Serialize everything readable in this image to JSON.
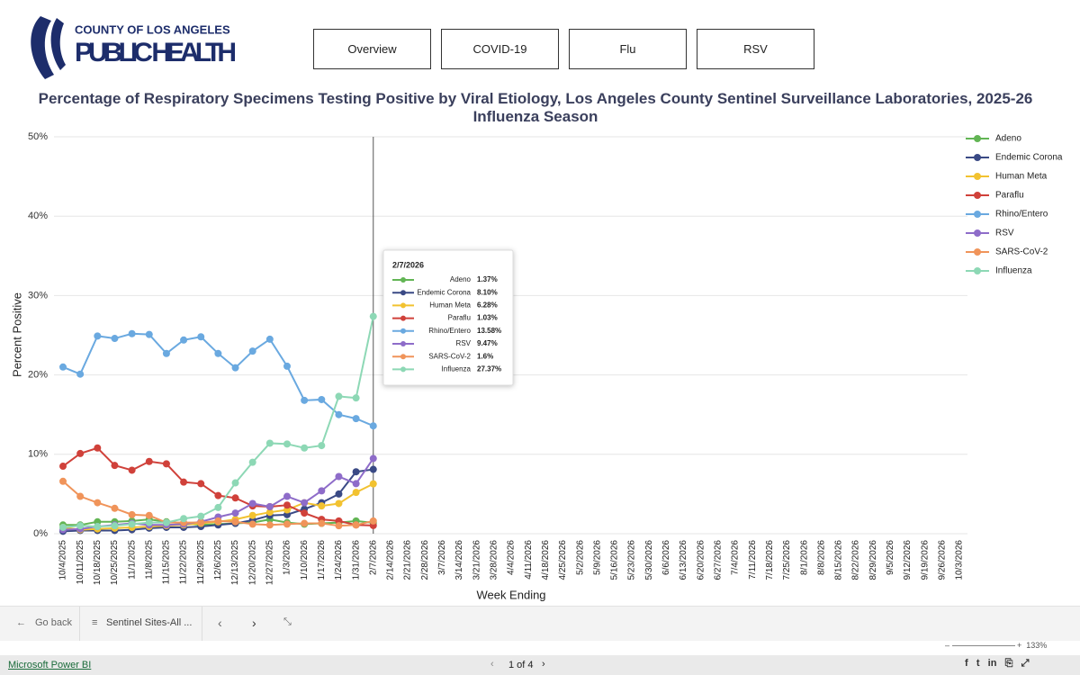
{
  "header": {
    "org": "COUNTY OF LOS ANGELES",
    "dept": "Public Health"
  },
  "nav": [
    "Overview",
    "COVID-19",
    "Flu",
    "RSV"
  ],
  "chart_data": {
    "type": "line",
    "title": "Percentage of Respiratory Specimens Testing Positive by Viral Etiology, Los Angeles County Sentinel Surveillance Laboratories, 2025-26 Influenza Season",
    "x_label": "Week Ending",
    "y_label": "Percent Positive",
    "categories": [
      "10/4/2025",
      "10/11/2025",
      "10/18/2025",
      "10/25/2025",
      "11/1/2025",
      "11/8/2025",
      "11/15/2025",
      "11/22/2025",
      "11/29/2025",
      "12/6/2025",
      "12/13/2025",
      "12/20/2025",
      "12/27/2025",
      "1/3/2026",
      "1/10/2026",
      "1/17/2026",
      "1/24/2026",
      "1/31/2026",
      "2/7/2026",
      "2/14/2026",
      "2/21/2026",
      "2/28/2026",
      "3/7/2026",
      "3/14/2026",
      "3/21/2026",
      "3/28/2026",
      "4/4/2026",
      "4/11/2026",
      "4/18/2026",
      "4/25/2026",
      "5/2/2026",
      "5/9/2026",
      "5/16/2026",
      "5/23/2026",
      "5/30/2026",
      "6/6/2026",
      "6/13/2026",
      "6/20/2026",
      "6/27/2026",
      "7/4/2026",
      "7/11/2026",
      "7/18/2026",
      "7/25/2026",
      "8/1/2026",
      "8/8/2026",
      "8/15/2026",
      "8/22/2026",
      "8/29/2026",
      "9/5/2026",
      "9/12/2026",
      "9/19/2026",
      "9/26/2026",
      "10/3/2026"
    ],
    "ylim": [
      0,
      50
    ],
    "yticks": [
      {
        "value": 0,
        "label": "0%"
      },
      {
        "value": 10,
        "label": "10%"
      },
      {
        "value": 20,
        "label": "20%"
      },
      {
        "value": 30,
        "label": "30%"
      },
      {
        "value": 40,
        "label": "40%"
      },
      {
        "value": 50,
        "label": "50%"
      }
    ],
    "grid": true,
    "legend": "right",
    "series": [
      {
        "name": "Adeno",
        "color": "#62b554",
        "values": [
          1.1,
          1.1,
          1.5,
          1.5,
          1.6,
          1.8,
          1.5,
          1.3,
          1.1,
          1.2,
          1.3,
          1.4,
          1.8,
          1.4,
          1.2,
          1.3,
          1.4,
          1.6,
          1.37,
          null,
          null,
          null,
          null,
          null,
          null,
          null,
          null,
          null,
          null,
          null,
          null,
          null,
          null,
          null,
          null,
          null,
          null,
          null,
          null,
          null,
          null,
          null,
          null,
          null,
          null,
          null,
          null,
          null,
          null,
          null,
          null,
          null,
          null
        ],
        "tooltip_label": "1.37%"
      },
      {
        "name": "Endemic Corona",
        "color": "#3a4a85",
        "values": [
          0.3,
          0.4,
          0.4,
          0.4,
          0.5,
          0.7,
          0.8,
          0.8,
          0.9,
          1.1,
          1.3,
          1.7,
          2.3,
          2.4,
          3.1,
          3.9,
          5.0,
          7.8,
          8.1,
          null,
          null,
          null,
          null,
          null,
          null,
          null,
          null,
          null,
          null,
          null,
          null,
          null,
          null,
          null,
          null,
          null,
          null,
          null,
          null,
          null,
          null,
          null,
          null,
          null,
          null,
          null,
          null,
          null,
          null,
          null,
          null,
          null,
          null
        ],
        "tooltip_label": "8.10%"
      },
      {
        "name": "Human Meta",
        "color": "#f2c230",
        "values": [
          0.8,
          0.5,
          0.6,
          0.7,
          0.8,
          0.9,
          1.0,
          1.1,
          1.3,
          1.5,
          1.8,
          2.3,
          2.7,
          3.0,
          3.9,
          3.5,
          3.8,
          5.2,
          6.28,
          null,
          null,
          null,
          null,
          null,
          null,
          null,
          null,
          null,
          null,
          null,
          null,
          null,
          null,
          null,
          null,
          null,
          null,
          null,
          null,
          null,
          null,
          null,
          null,
          null,
          null,
          null,
          null,
          null,
          null,
          null,
          null,
          null,
          null
        ],
        "tooltip_label": "6.28%"
      },
      {
        "name": "Paraflu",
        "color": "#d0413a",
        "values": [
          8.5,
          10.1,
          10.8,
          8.6,
          8.0,
          9.1,
          8.8,
          6.5,
          6.3,
          4.8,
          4.5,
          3.5,
          3.4,
          3.6,
          2.6,
          1.8,
          1.6,
          1.1,
          1.03,
          null,
          null,
          null,
          null,
          null,
          null,
          null,
          null,
          null,
          null,
          null,
          null,
          null,
          null,
          null,
          null,
          null,
          null,
          null,
          null,
          null,
          null,
          null,
          null,
          null,
          null,
          null,
          null,
          null,
          null,
          null,
          null,
          null,
          null
        ],
        "tooltip_label": "1.03%"
      },
      {
        "name": "Rhino/Entero",
        "color": "#6aa9e0",
        "values": [
          21.0,
          20.1,
          24.9,
          24.6,
          25.2,
          25.1,
          22.7,
          24.4,
          24.8,
          22.7,
          20.9,
          23.0,
          24.5,
          21.1,
          16.8,
          16.9,
          15.0,
          14.5,
          13.58,
          null,
          null,
          null,
          null,
          null,
          null,
          null,
          null,
          null,
          null,
          null,
          null,
          null,
          null,
          null,
          null,
          null,
          null,
          null,
          null,
          null,
          null,
          null,
          null,
          null,
          null,
          null,
          null,
          null,
          null,
          null,
          null,
          null,
          null
        ],
        "tooltip_label": "13.58%"
      },
      {
        "name": "RSV",
        "color": "#8e6cc9",
        "values": [
          0.5,
          0.6,
          0.9,
          1.1,
          1.3,
          1.1,
          1.1,
          1.2,
          1.5,
          2.1,
          2.6,
          3.8,
          3.4,
          4.7,
          3.9,
          5.4,
          7.2,
          6.3,
          9.47,
          null,
          null,
          null,
          null,
          null,
          null,
          null,
          null,
          null,
          null,
          null,
          null,
          null,
          null,
          null,
          null,
          null,
          null,
          null,
          null,
          null,
          null,
          null,
          null,
          null,
          null,
          null,
          null,
          null,
          null,
          null,
          null,
          null,
          null
        ],
        "tooltip_label": "9.47%"
      },
      {
        "name": "SARS-CoV-2",
        "color": "#f0945a",
        "values": [
          6.6,
          4.7,
          3.9,
          3.2,
          2.4,
          2.3,
          1.4,
          1.4,
          1.4,
          1.6,
          1.5,
          1.2,
          1.1,
          1.2,
          1.3,
          1.3,
          1.0,
          1.1,
          1.6,
          null,
          null,
          null,
          null,
          null,
          null,
          null,
          null,
          null,
          null,
          null,
          null,
          null,
          null,
          null,
          null,
          null,
          null,
          null,
          null,
          null,
          null,
          null,
          null,
          null,
          null,
          null,
          null,
          null,
          null,
          null,
          null,
          null,
          null
        ],
        "tooltip_label": "1.6%"
      },
      {
        "name": "Influenza",
        "color": "#8dd8b5",
        "values": [
          0.8,
          1.0,
          0.9,
          1.0,
          1.2,
          1.4,
          1.4,
          1.9,
          2.2,
          3.3,
          6.4,
          9.0,
          11.4,
          11.3,
          10.8,
          11.1,
          17.3,
          17.1,
          27.37,
          null,
          null,
          null,
          null,
          null,
          null,
          null,
          null,
          null,
          null,
          null,
          null,
          null,
          null,
          null,
          null,
          null,
          null,
          null,
          null,
          null,
          null,
          null,
          null,
          null,
          null,
          null,
          null,
          null,
          null,
          null,
          null,
          null,
          null
        ],
        "tooltip_label": "27.37%"
      }
    ]
  },
  "toolbar": {
    "back": "Go back",
    "bookmark": "Sentinel Sites-All ...",
    "zoom": "133%"
  },
  "footer": {
    "brand": "Microsoft Power BI",
    "pages": "1 of 4"
  }
}
